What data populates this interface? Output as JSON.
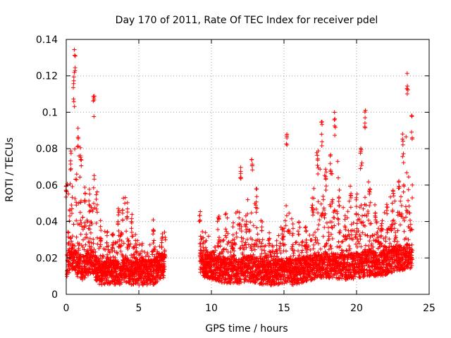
{
  "chart_data": {
    "type": "scatter",
    "title": "Day 170 of 2011, Rate Of TEC Index for receiver pdel",
    "xlabel": "GPS time / hours",
    "ylabel": "ROTI / TECUs",
    "xlim": [
      0,
      25
    ],
    "ylim": [
      0,
      0.14
    ],
    "xticks": [
      0,
      5,
      10,
      15,
      20,
      25
    ],
    "xtick_labels": [
      "0",
      "5",
      "10",
      "15",
      "20",
      "25"
    ],
    "yticks": [
      0,
      0.02,
      0.04,
      0.06,
      0.08,
      0.1,
      0.12,
      0.14
    ],
    "ytick_labels": [
      "0",
      "0.02",
      "0.04",
      "0.06",
      "0.08",
      "0.1",
      "0.12",
      "0.14"
    ],
    "grid": true,
    "marker": "+",
    "color": "#ff0000",
    "envelope": {
      "x": [
        0.0,
        0.3,
        0.5,
        0.6,
        0.8,
        1.0,
        1.3,
        1.6,
        1.9,
        2.1,
        2.4,
        2.8,
        3.2,
        3.6,
        3.9,
        4.2,
        4.5,
        4.8,
        5.2,
        5.6,
        6.0,
        6.3,
        6.6,
        6.8,
        9.2,
        9.6,
        10.0,
        10.5,
        11.0,
        11.5,
        12.0,
        12.4,
        12.8,
        13.1,
        13.5,
        14.0,
        14.5,
        14.9,
        15.2,
        15.6,
        16.0,
        16.5,
        17.0,
        17.3,
        17.6,
        17.9,
        18.2,
        18.5,
        18.8,
        19.2,
        19.6,
        20.0,
        20.3,
        20.6,
        20.9,
        21.3,
        21.7,
        22.1,
        22.5,
        22.9,
        23.2,
        23.5,
        23.8
      ],
      "base": [
        0.015,
        0.02,
        0.02,
        0.02,
        0.015,
        0.015,
        0.015,
        0.018,
        0.018,
        0.013,
        0.012,
        0.012,
        0.012,
        0.012,
        0.013,
        0.013,
        0.012,
        0.012,
        0.012,
        0.012,
        0.012,
        0.014,
        0.016,
        0.016,
        0.018,
        0.016,
        0.015,
        0.014,
        0.013,
        0.013,
        0.013,
        0.014,
        0.014,
        0.013,
        0.012,
        0.012,
        0.012,
        0.013,
        0.013,
        0.012,
        0.013,
        0.014,
        0.015,
        0.016,
        0.016,
        0.016,
        0.016,
        0.016,
        0.015,
        0.015,
        0.015,
        0.016,
        0.016,
        0.017,
        0.017,
        0.017,
        0.017,
        0.018,
        0.019,
        0.02,
        0.02,
        0.021,
        0.021
      ],
      "upper": [
        0.06,
        0.08,
        0.12,
        0.135,
        0.095,
        0.085,
        0.065,
        0.06,
        0.11,
        0.06,
        0.04,
        0.035,
        0.035,
        0.05,
        0.055,
        0.055,
        0.045,
        0.035,
        0.03,
        0.025,
        0.042,
        0.025,
        0.035,
        0.035,
        0.046,
        0.035,
        0.03,
        0.043,
        0.045,
        0.04,
        0.072,
        0.045,
        0.075,
        0.058,
        0.04,
        0.038,
        0.03,
        0.045,
        0.09,
        0.04,
        0.045,
        0.04,
        0.055,
        0.08,
        0.095,
        0.07,
        0.08,
        0.102,
        0.06,
        0.045,
        0.06,
        0.058,
        0.083,
        0.102,
        0.06,
        0.05,
        0.045,
        0.05,
        0.06,
        0.07,
        0.09,
        0.124,
        0.1
      ]
    }
  }
}
